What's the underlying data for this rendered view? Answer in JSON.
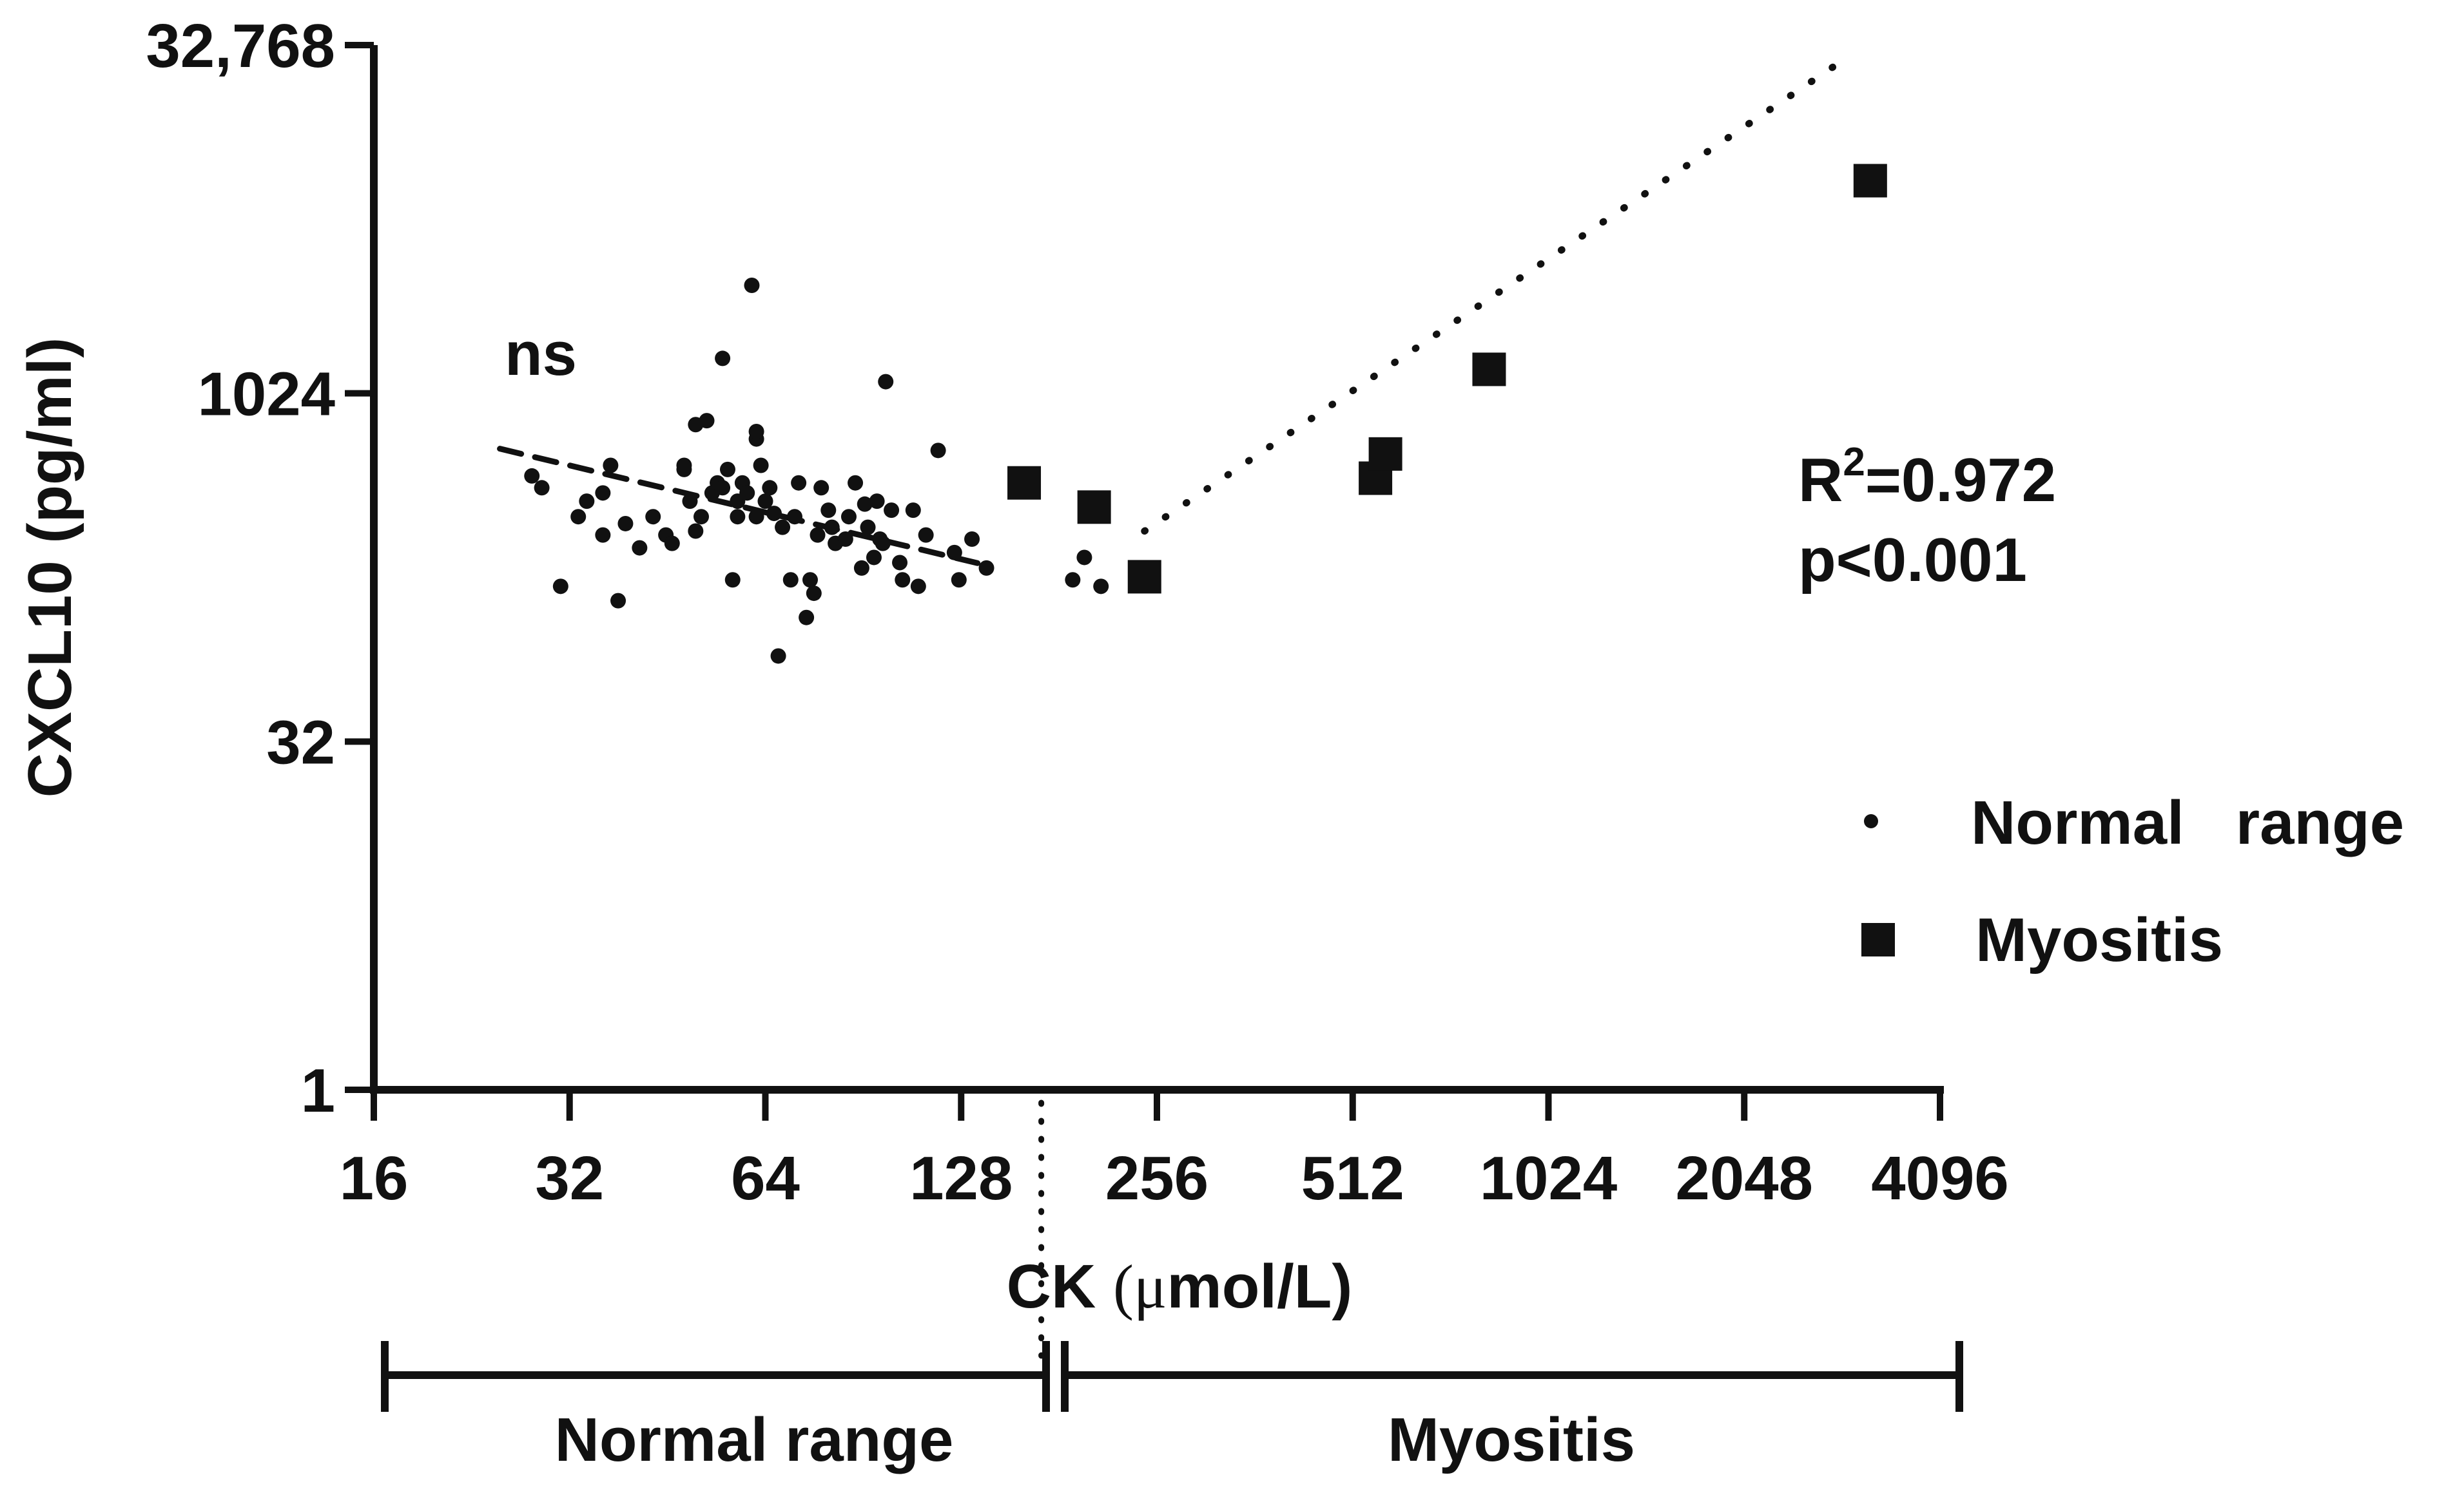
{
  "chart_data": {
    "type": "scatter",
    "title": "",
    "xlabel": "CK (μmol/L)",
    "xlabel_parts": {
      "prefix": "CK ",
      "unit_open": "(",
      "unit_mu": "μ",
      "unit_rest": "mol/L)"
    },
    "ylabel": "CXCL10 (pg/ml)",
    "x_scale": "log2",
    "y_scale": "log2",
    "xlim": [
      16,
      4096
    ],
    "ylim": [
      1,
      32768
    ],
    "x_ticks": [
      16,
      32,
      64,
      128,
      256,
      512,
      1024,
      2048,
      4096
    ],
    "x_tick_labels": [
      "16",
      "32",
      "64",
      "128",
      "256",
      "512",
      "1024",
      "2048",
      "4096"
    ],
    "y_ticks": [
      1,
      32,
      1024,
      32768
    ],
    "y_tick_labels": [
      "1",
      "32",
      "1024",
      "32,768"
    ],
    "normal_upper_limit": 170,
    "series": [
      {
        "name": "Normal range",
        "marker": "circle",
        "x": [
          28,
          29,
          31,
          33,
          34,
          36,
          36,
          37,
          38,
          39,
          41,
          43,
          45,
          46,
          48,
          49,
          50,
          50,
          51,
          52,
          53,
          54,
          55,
          56,
          57,
          58,
          58,
          59,
          60,
          61,
          62,
          62,
          63,
          64,
          65,
          66,
          67,
          68,
          70,
          71,
          72,
          74,
          75,
          76,
          77,
          78,
          80,
          81,
          82,
          85,
          86,
          88,
          90,
          91,
          92,
          94,
          95,
          96,
          97,
          98,
          100,
          103,
          104,
          108,
          110,
          113,
          118,
          125,
          127,
          140,
          133,
          190,
          198,
          210,
          55,
          62,
          48
        ],
        "y": [
          450,
          400,
          150,
          300,
          350,
          380,
          250,
          500,
          130,
          280,
          220,
          300,
          250,
          230,
          480,
          350,
          750,
          260,
          300,
          780,
          380,
          420,
          400,
          480,
          160,
          350,
          300,
          420,
          380,
          3000,
          650,
          300,
          500,
          350,
          400,
          310,
          75,
          270,
          160,
          300,
          420,
          110,
          160,
          140,
          250,
          400,
          320,
          270,
          230,
          240,
          300,
          420,
          180,
          340,
          270,
          200,
          350,
          240,
          230,
          1150,
          320,
          190,
          160,
          320,
          150,
          250,
          580,
          210,
          160,
          180,
          240,
          160,
          200,
          150,
          1450,
          700,
          500
        ]
      },
      {
        "name": "Myositis",
        "marker": "square",
        "x": [
          160,
          205,
          245,
          555,
          575,
          830,
          3200
        ],
        "y": [
          420,
          330,
          165,
          440,
          560,
          1300,
          8500
        ]
      }
    ],
    "trendlines": [
      {
        "name": "Normal range fit",
        "style": "dashed",
        "x": [
          25,
          140
        ],
        "y": [
          590,
          185
        ]
      },
      {
        "name": "Myositis fit",
        "style": "dotted",
        "x": [
          245,
          2950
        ],
        "y": [
          260,
          29000
        ]
      }
    ],
    "annotations": {
      "ns": "ns",
      "r2_prefix": "R",
      "r2_sup": "2",
      "r2_value": "=0.972",
      "p_value": "p<0.001"
    },
    "legend": {
      "position": "right",
      "items": [
        {
          "label": "Normal   range",
          "marker": "circle"
        },
        {
          "label": "Myositis",
          "marker": "square"
        }
      ]
    },
    "range_brackets": [
      {
        "label": "Normal range",
        "from": 16,
        "to": 170
      },
      {
        "label": "Myositis",
        "from": 170,
        "to": 4096
      }
    ]
  },
  "colors": {
    "ink": "#111111",
    "background": "#ffffff"
  }
}
